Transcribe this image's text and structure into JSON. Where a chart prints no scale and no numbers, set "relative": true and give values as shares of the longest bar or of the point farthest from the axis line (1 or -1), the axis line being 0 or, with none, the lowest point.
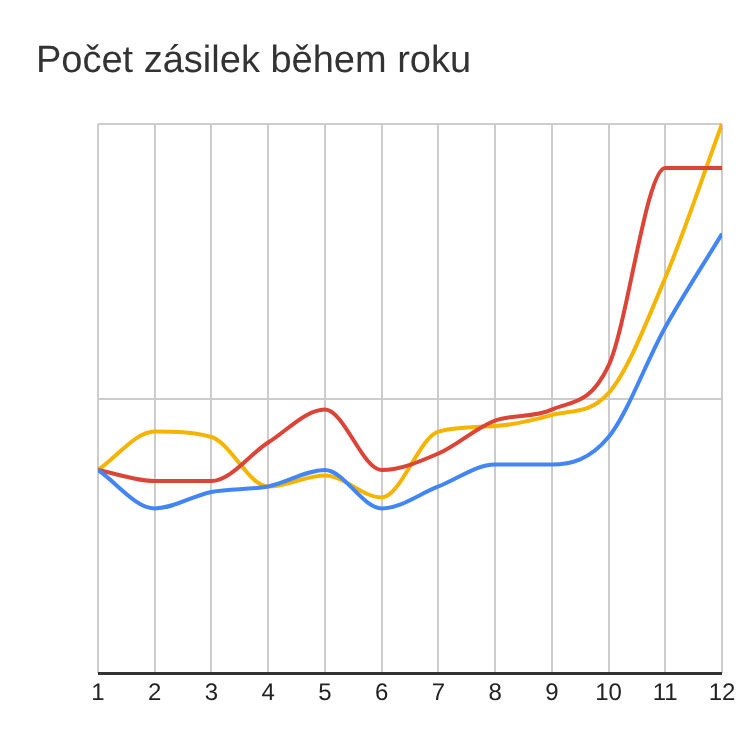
{
  "chart_data": {
    "type": "line",
    "title": "Počet zásilek během roku",
    "relative": true,
    "x": [
      1,
      2,
      3,
      4,
      5,
      6,
      7,
      8,
      9,
      10,
      11,
      12
    ],
    "xlim": [
      1,
      12
    ],
    "xticks": [
      1,
      2,
      3,
      4,
      5,
      6,
      7,
      8,
      9,
      10,
      11,
      12
    ],
    "series": [
      {
        "color": "#4285f4",
        "values": [
          0.37,
          0.3,
          0.33,
          0.34,
          0.37,
          0.3,
          0.34,
          0.38,
          0.38,
          0.43,
          0.63,
          0.8
        ]
      },
      {
        "color": "#db4437",
        "values": [
          0.37,
          0.35,
          0.35,
          0.42,
          0.48,
          0.37,
          0.4,
          0.46,
          0.48,
          0.56,
          0.92,
          0.92
        ]
      },
      {
        "color": "#f4b400",
        "values": [
          0.37,
          0.44,
          0.43,
          0.34,
          0.36,
          0.32,
          0.44,
          0.45,
          0.47,
          0.51,
          0.72,
          1
        ]
      }
    ],
    "grid": true,
    "legend": false,
    "marker": "none",
    "line_style": "solid"
  }
}
